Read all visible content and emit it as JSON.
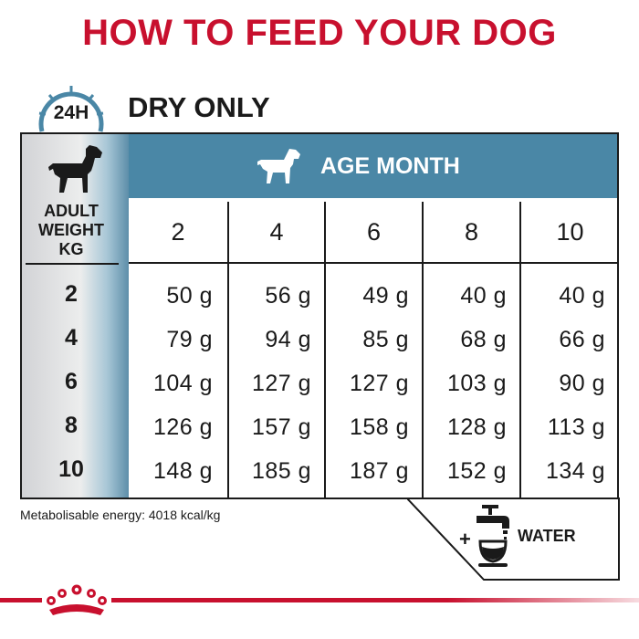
{
  "title": "HOW TO FEED YOUR DOG",
  "clock_label": "24H",
  "subtitle": "DRY ONLY",
  "weight_header": [
    "ADULT",
    "WEIGHT",
    "KG"
  ],
  "age_header": "AGE MONTH",
  "age_months": [
    "2",
    "4",
    "6",
    "8",
    "10"
  ],
  "rows": [
    {
      "weight": "2",
      "values": [
        "50 g",
        "56 g",
        "49 g",
        "40 g",
        "40 g"
      ]
    },
    {
      "weight": "4",
      "values": [
        "79 g",
        "94 g",
        "85 g",
        "68 g",
        "66 g"
      ]
    },
    {
      "weight": "6",
      "values": [
        "104 g",
        "127 g",
        "127 g",
        "103 g",
        "90 g"
      ]
    },
    {
      "weight": "8",
      "values": [
        "126 g",
        "157 g",
        "158 g",
        "128 g",
        "113 g"
      ]
    },
    {
      "weight": "10",
      "values": [
        "148 g",
        "185 g",
        "187 g",
        "152 g",
        "134 g"
      ]
    }
  ],
  "energy_note": "Metabolisable energy: 4018 kcal/kg",
  "water": {
    "plus": "+",
    "label": "WATER"
  },
  "colors": {
    "brand_red": "#c8102e",
    "header_blue": "#4a87a6",
    "text": "#1a1a1a"
  },
  "icons": [
    "clock-icon",
    "adult-dog-icon",
    "puppy-icon",
    "tap-bowl-icon",
    "royal-canin-crown-logo"
  ]
}
